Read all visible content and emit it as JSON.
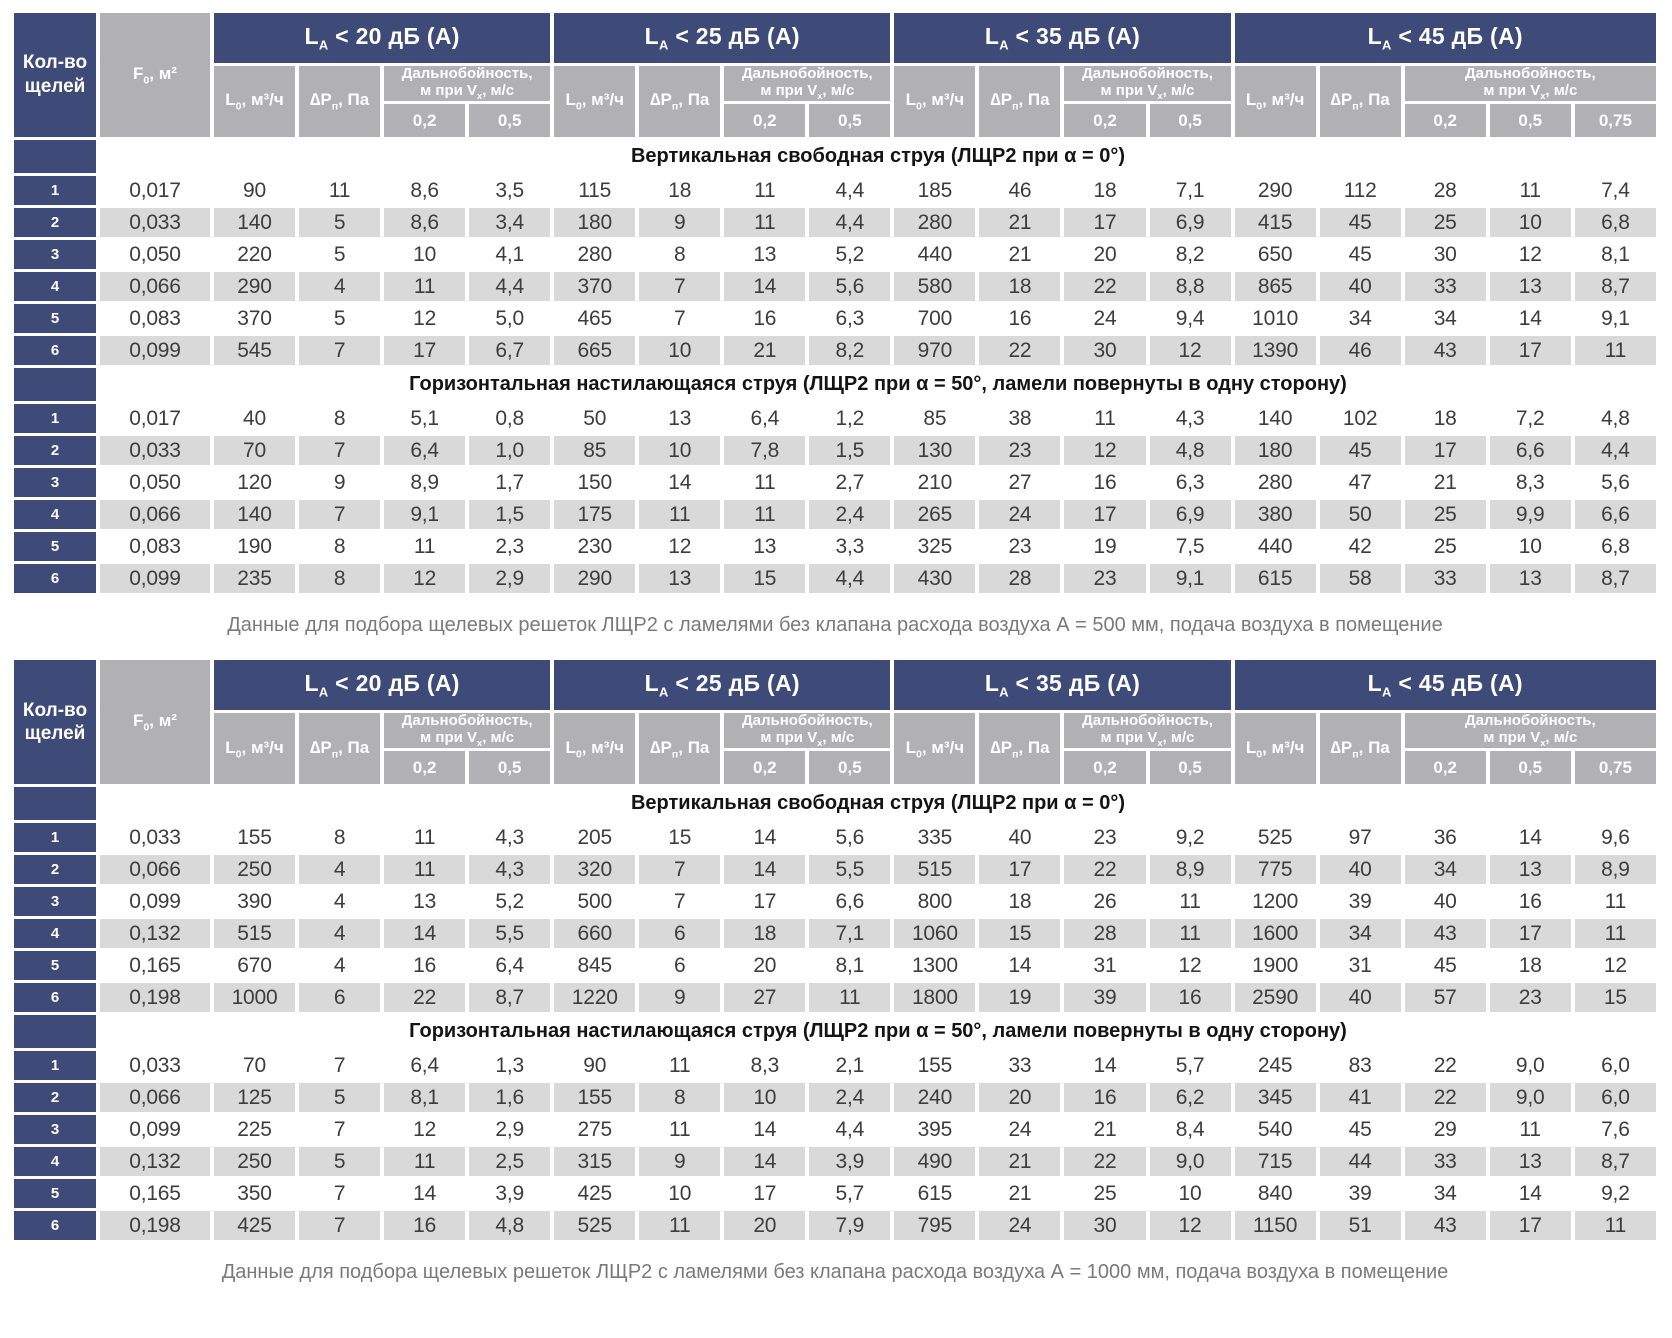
{
  "colors": {
    "navy": "#3e4a77",
    "header_gray": "#b1b0b2",
    "row_stripe_gray": "#d9d9d9",
    "data_text": "#3d3d3d",
    "caption_text": "#7a7a7a"
  },
  "header": {
    "slots_label": "Кол-во щелей",
    "f0": {
      "pre": "F",
      "sub": "0",
      "post": ", м²"
    },
    "l0": {
      "pre": "L",
      "sub": "0",
      "post": ", м³/ч"
    },
    "dp": {
      "pre": "∆P",
      "sub": "п",
      "post": ", Па"
    },
    "throw_line1": "Дальнобойность,",
    "throw_line2": {
      "pre": "м при V",
      "sub": "x",
      "post": ", м/с"
    },
    "groups": [
      {
        "label": {
          "pre": "L",
          "sub": "A",
          "post": " < 20 дБ (А)"
        },
        "speeds": [
          "0,2",
          "0,5"
        ]
      },
      {
        "label": {
          "pre": "L",
          "sub": "A",
          "post": " < 25 дБ (А)"
        },
        "speeds": [
          "0,2",
          "0,5"
        ]
      },
      {
        "label": {
          "pre": "L",
          "sub": "A",
          "post": " < 35 дБ (А)"
        },
        "speeds": [
          "0,2",
          "0,5"
        ]
      },
      {
        "label": {
          "pre": "L",
          "sub": "A",
          "post": " < 45 дБ (А)"
        },
        "speeds": [
          "0,2",
          "0,5",
          "0,75"
        ]
      }
    ]
  },
  "tables": [
    {
      "caption": "Данные для подбора щелевых решеток ЛЩР2 с ламелями без клапана расхода воздуха А = 500 мм, подача воздуха в помещение",
      "sections": [
        {
          "title": "Вертикальная свободная струя (ЛЩР2 при α = 0°)",
          "rows": [
            {
              "n": "1",
              "f0": "0,017",
              "values": [
                "90",
                "11",
                "8,6",
                "3,5",
                "115",
                "18",
                "11",
                "4,4",
                "185",
                "46",
                "18",
                "7,1",
                "290",
                "112",
                "28",
                "11",
                "7,4"
              ]
            },
            {
              "n": "2",
              "f0": "0,033",
              "values": [
                "140",
                "5",
                "8,6",
                "3,4",
                "180",
                "9",
                "11",
                "4,4",
                "280",
                "21",
                "17",
                "6,9",
                "415",
                "45",
                "25",
                "10",
                "6,8"
              ]
            },
            {
              "n": "3",
              "f0": "0,050",
              "values": [
                "220",
                "5",
                "10",
                "4,1",
                "280",
                "8",
                "13",
                "5,2",
                "440",
                "21",
                "20",
                "8,2",
                "650",
                "45",
                "30",
                "12",
                "8,1"
              ]
            },
            {
              "n": "4",
              "f0": "0,066",
              "values": [
                "290",
                "4",
                "11",
                "4,4",
                "370",
                "7",
                "14",
                "5,6",
                "580",
                "18",
                "22",
                "8,8",
                "865",
                "40",
                "33",
                "13",
                "8,7"
              ]
            },
            {
              "n": "5",
              "f0": "0,083",
              "values": [
                "370",
                "5",
                "12",
                "5,0",
                "465",
                "7",
                "16",
                "6,3",
                "700",
                "16",
                "24",
                "9,4",
                "1010",
                "34",
                "34",
                "14",
                "9,1"
              ]
            },
            {
              "n": "6",
              "f0": "0,099",
              "values": [
                "545",
                "7",
                "17",
                "6,7",
                "665",
                "10",
                "21",
                "8,2",
                "970",
                "22",
                "30",
                "12",
                "1390",
                "46",
                "43",
                "17",
                "11"
              ]
            }
          ]
        },
        {
          "title": "Горизонтальная настилающаяся струя (ЛЩР2 при α = 50°, ламели повернуты в одну сторону)",
          "rows": [
            {
              "n": "1",
              "f0": "0,017",
              "values": [
                "40",
                "8",
                "5,1",
                "0,8",
                "50",
                "13",
                "6,4",
                "1,2",
                "85",
                "38",
                "11",
                "4,3",
                "140",
                "102",
                "18",
                "7,2",
                "4,8"
              ]
            },
            {
              "n": "2",
              "f0": "0,033",
              "values": [
                "70",
                "7",
                "6,4",
                "1,0",
                "85",
                "10",
                "7,8",
                "1,5",
                "130",
                "23",
                "12",
                "4,8",
                "180",
                "45",
                "17",
                "6,6",
                "4,4"
              ]
            },
            {
              "n": "3",
              "f0": "0,050",
              "values": [
                "120",
                "9",
                "8,9",
                "1,7",
                "150",
                "14",
                "11",
                "2,7",
                "210",
                "27",
                "16",
                "6,3",
                "280",
                "47",
                "21",
                "8,3",
                "5,6"
              ]
            },
            {
              "n": "4",
              "f0": "0,066",
              "values": [
                "140",
                "7",
                "9,1",
                "1,5",
                "175",
                "11",
                "11",
                "2,4",
                "265",
                "24",
                "17",
                "6,9",
                "380",
                "50",
                "25",
                "9,9",
                "6,6"
              ]
            },
            {
              "n": "5",
              "f0": "0,083",
              "values": [
                "190",
                "8",
                "11",
                "2,3",
                "230",
                "12",
                "13",
                "3,3",
                "325",
                "23",
                "19",
                "7,5",
                "440",
                "42",
                "25",
                "10",
                "6,8"
              ]
            },
            {
              "n": "6",
              "f0": "0,099",
              "values": [
                "235",
                "8",
                "12",
                "2,9",
                "290",
                "13",
                "15",
                "4,4",
                "430",
                "28",
                "23",
                "9,1",
                "615",
                "58",
                "33",
                "13",
                "8,7"
              ]
            }
          ]
        }
      ]
    },
    {
      "caption": "Данные для подбора щелевых решеток ЛЩР2 с ламелями без клапана расхода воздуха А = 1000 мм, подача воздуха в помещение",
      "sections": [
        {
          "title": "Вертикальная свободная струя (ЛЩР2 при α = 0°)",
          "rows": [
            {
              "n": "1",
              "f0": "0,033",
              "values": [
                "155",
                "8",
                "11",
                "4,3",
                "205",
                "15",
                "14",
                "5,6",
                "335",
                "40",
                "23",
                "9,2",
                "525",
                "97",
                "36",
                "14",
                "9,6"
              ]
            },
            {
              "n": "2",
              "f0": "0,066",
              "values": [
                "250",
                "4",
                "11",
                "4,3",
                "320",
                "7",
                "14",
                "5,5",
                "515",
                "17",
                "22",
                "8,9",
                "775",
                "40",
                "34",
                "13",
                "8,9"
              ]
            },
            {
              "n": "3",
              "f0": "0,099",
              "values": [
                "390",
                "4",
                "13",
                "5,2",
                "500",
                "7",
                "17",
                "6,6",
                "800",
                "18",
                "26",
                "11",
                "1200",
                "39",
                "40",
                "16",
                "11"
              ]
            },
            {
              "n": "4",
              "f0": "0,132",
              "values": [
                "515",
                "4",
                "14",
                "5,5",
                "660",
                "6",
                "18",
                "7,1",
                "1060",
                "15",
                "28",
                "11",
                "1600",
                "34",
                "43",
                "17",
                "11"
              ]
            },
            {
              "n": "5",
              "f0": "0,165",
              "values": [
                "670",
                "4",
                "16",
                "6,4",
                "845",
                "6",
                "20",
                "8,1",
                "1300",
                "14",
                "31",
                "12",
                "1900",
                "31",
                "45",
                "18",
                "12"
              ]
            },
            {
              "n": "6",
              "f0": "0,198",
              "values": [
                "1000",
                "6",
                "22",
                "8,7",
                "1220",
                "9",
                "27",
                "11",
                "1800",
                "19",
                "39",
                "16",
                "2590",
                "40",
                "57",
                "23",
                "15"
              ]
            }
          ]
        },
        {
          "title": "Горизонтальная настилающаяся струя (ЛЩР2 при α = 50°, ламели повернуты в одну сторону)",
          "rows": [
            {
              "n": "1",
              "f0": "0,033",
              "values": [
                "70",
                "7",
                "6,4",
                "1,3",
                "90",
                "11",
                "8,3",
                "2,1",
                "155",
                "33",
                "14",
                "5,7",
                "245",
                "83",
                "22",
                "9,0",
                "6,0"
              ]
            },
            {
              "n": "2",
              "f0": "0,066",
              "values": [
                "125",
                "5",
                "8,1",
                "1,6",
                "155",
                "8",
                "10",
                "2,4",
                "240",
                "20",
                "16",
                "6,2",
                "345",
                "41",
                "22",
                "9,0",
                "6,0"
              ]
            },
            {
              "n": "3",
              "f0": "0,099",
              "values": [
                "225",
                "7",
                "12",
                "2,9",
                "275",
                "11",
                "14",
                "4,4",
                "395",
                "24",
                "21",
                "8,4",
                "540",
                "45",
                "29",
                "11",
                "7,6"
              ]
            },
            {
              "n": "4",
              "f0": "0,132",
              "values": [
                "250",
                "5",
                "11",
                "2,5",
                "315",
                "9",
                "14",
                "3,9",
                "490",
                "21",
                "22",
                "9,0",
                "715",
                "44",
                "33",
                "13",
                "8,7"
              ]
            },
            {
              "n": "5",
              "f0": "0,165",
              "values": [
                "350",
                "7",
                "14",
                "3,9",
                "425",
                "10",
                "17",
                "5,7",
                "615",
                "21",
                "25",
                "10",
                "840",
                "39",
                "34",
                "14",
                "9,2"
              ]
            },
            {
              "n": "6",
              "f0": "0,198",
              "values": [
                "425",
                "7",
                "16",
                "4,8",
                "525",
                "11",
                "20",
                "7,9",
                "795",
                "24",
                "30",
                "12",
                "1150",
                "51",
                "43",
                "17",
                "11"
              ]
            }
          ]
        }
      ]
    }
  ]
}
